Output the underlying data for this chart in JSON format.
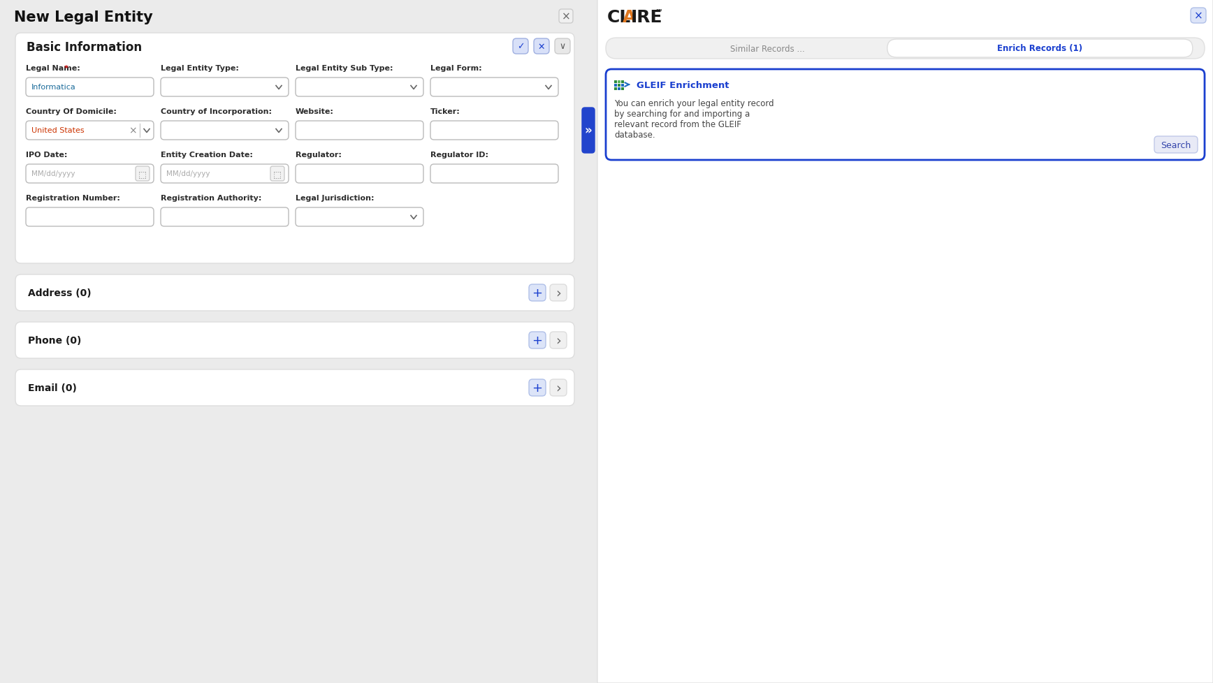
{
  "title": "New Legal Entity",
  "bg_color": "#ebebeb",
  "form_title": "Basic Information",
  "fields_row1": [
    {
      "label": "Legal Name:",
      "value": "Informatica",
      "type": "text",
      "required": true
    },
    {
      "label": "Legal Entity Type:",
      "value": "",
      "type": "dropdown"
    },
    {
      "label": "Legal Entity Sub Type:",
      "value": "",
      "type": "dropdown"
    },
    {
      "label": "Legal Form:",
      "value": "",
      "type": "dropdown"
    }
  ],
  "fields_row2": [
    {
      "label": "Country Of Domicile:",
      "value": "United States",
      "type": "tag"
    },
    {
      "label": "Country of Incorporation:",
      "value": "",
      "type": "dropdown"
    },
    {
      "label": "Website:",
      "value": "",
      "type": "text"
    },
    {
      "label": "Ticker:",
      "value": "",
      "type": "text"
    }
  ],
  "fields_row3": [
    {
      "label": "IPO Date:",
      "value": "MM/dd/yyyy",
      "type": "date"
    },
    {
      "label": "Entity Creation Date:",
      "value": "MM/dd/yyyy",
      "type": "date"
    },
    {
      "label": "Regulator:",
      "value": "",
      "type": "text"
    },
    {
      "label": "Regulator ID:",
      "value": "",
      "type": "text"
    }
  ],
  "fields_row4": [
    {
      "label": "Registration Number:",
      "value": "",
      "type": "text"
    },
    {
      "label": "Registration Authority:",
      "value": "",
      "type": "text"
    },
    {
      "label": "Legal Jurisdiction:",
      "value": "",
      "type": "dropdown"
    }
  ],
  "sections": [
    {
      "label": "Address (0)"
    },
    {
      "label": "Phone (0)"
    },
    {
      "label": "Email (0)"
    }
  ],
  "tab_similar": "Similar Records ...",
  "tab_enrich": "Enrich Records (1)",
  "card_title": "GLEIF Enrichment",
  "card_text_lines": [
    "You can enrich your legal entity record",
    "by searching for and importing a",
    "relevant record from the GLEIF",
    "database."
  ],
  "card_button": "Search",
  "label_color": "#2c2c2c",
  "value_color": "#1a1a1a",
  "placeholder_color": "#aaaaaa",
  "required_color": "#cc0000",
  "tab_active_color": "#1a3fcf",
  "card_title_color": "#1a3fcf",
  "card_text_color": "#444444",
  "united_states_color": "#cc3300",
  "informatica_color": "#1a6b9a"
}
